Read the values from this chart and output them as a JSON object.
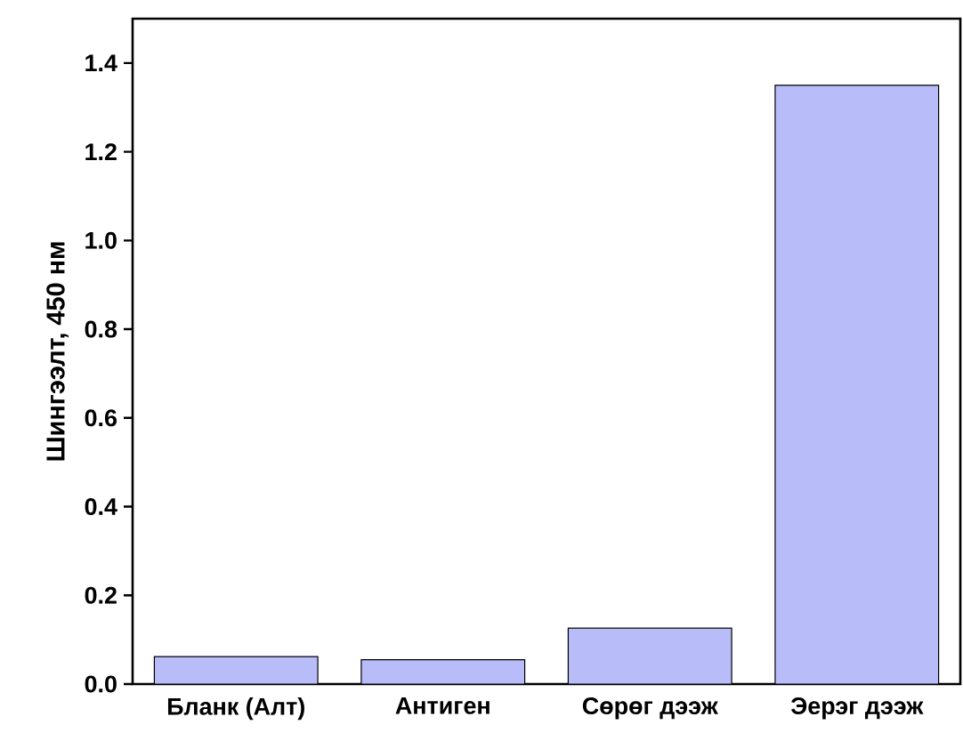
{
  "chart_data": {
    "type": "bar",
    "ylabel": "Шингээлт, 450 нм",
    "categories": [
      "Бланк (Алт)",
      "Антиген",
      "Сөрөг дээж",
      "Эерэг дээж"
    ],
    "values": [
      0.062,
      0.055,
      0.126,
      1.35
    ],
    "color": "#b8bcf8",
    "ylim": [
      0,
      1.5
    ],
    "yticks": [
      {
        "value": 0,
        "label": "0.0"
      },
      {
        "value": 0.2,
        "label": "0.2"
      },
      {
        "value": 0.4,
        "label": "0.4"
      },
      {
        "value": 0.6,
        "label": "0.6"
      },
      {
        "value": 0.8,
        "label": "0.8"
      },
      {
        "value": 1.0,
        "label": "1.0"
      },
      {
        "value": 1.2,
        "label": "1.2"
      },
      {
        "value": 1.4,
        "label": "1.4"
      }
    ],
    "orientation": "vertical"
  }
}
